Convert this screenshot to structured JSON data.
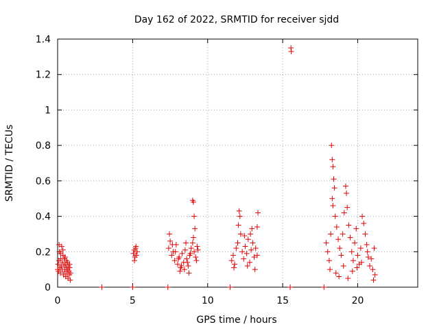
{
  "chart_data": {
    "type": "scatter",
    "title": "Day 162 of 2022, SRMTID for receiver sjdd",
    "xlabel": "GPS time / hours",
    "ylabel": "SRMTID / TECUs",
    "xlim": [
      0,
      24
    ],
    "ylim": [
      0,
      1.4
    ],
    "xticks": [
      0,
      5,
      10,
      15,
      20
    ],
    "yticks": [
      0,
      0.2,
      0.4,
      0.6,
      0.8,
      1.0,
      1.2,
      1.4
    ],
    "xtick_labels": [
      "0",
      "5",
      "10",
      "15",
      "20"
    ],
    "ytick_labels": [
      "0",
      "0.2",
      "0.4",
      "0.6",
      "0.8",
      "1",
      "1.2",
      "1.4"
    ],
    "grid": true,
    "marker": "plus",
    "color": "#e00000",
    "series": [
      {
        "name": "SRMTID",
        "points": [
          [
            0.0,
            0.1
          ],
          [
            0.03,
            0.13
          ],
          [
            0.06,
            0.09
          ],
          [
            0.09,
            0.15
          ],
          [
            0.12,
            0.2
          ],
          [
            0.15,
            0.11
          ],
          [
            0.18,
            0.08
          ],
          [
            0.21,
            0.16
          ],
          [
            0.24,
            0.12
          ],
          [
            0.27,
            0.23
          ],
          [
            0.3,
            0.1
          ],
          [
            0.33,
            0.14
          ],
          [
            0.36,
            0.18
          ],
          [
            0.39,
            0.07
          ],
          [
            0.42,
            0.12
          ],
          [
            0.45,
            0.16
          ],
          [
            0.48,
            0.09
          ],
          [
            0.51,
            0.13
          ],
          [
            0.54,
            0.06
          ],
          [
            0.57,
            0.11
          ],
          [
            0.6,
            0.15
          ],
          [
            0.63,
            0.08
          ],
          [
            0.66,
            0.1
          ],
          [
            0.69,
            0.05
          ],
          [
            0.72,
            0.12
          ],
          [
            0.75,
            0.09
          ],
          [
            0.78,
            0.07
          ],
          [
            0.81,
            0.11
          ],
          [
            0.84,
            0.04
          ],
          [
            0.87,
            0.08
          ],
          [
            0.1,
            0.24
          ],
          [
            0.2,
            0.19
          ],
          [
            0.35,
            0.21
          ],
          [
            0.5,
            0.17
          ],
          [
            0.65,
            0.14
          ],
          [
            0.8,
            0.13
          ],
          [
            2.95,
            0.0
          ],
          [
            5.0,
            0.0
          ],
          [
            7.35,
            0.0
          ],
          [
            11.5,
            0.0
          ],
          [
            15.5,
            0.0
          ],
          [
            17.75,
            0.0
          ],
          [
            5.05,
            0.19
          ],
          [
            5.1,
            0.21
          ],
          [
            5.15,
            0.17
          ],
          [
            5.2,
            0.22
          ],
          [
            5.25,
            0.18
          ],
          [
            5.3,
            0.2
          ],
          [
            5.12,
            0.15
          ],
          [
            5.22,
            0.23
          ],
          [
            7.4,
            0.22
          ],
          [
            7.5,
            0.26
          ],
          [
            7.6,
            0.18
          ],
          [
            7.7,
            0.2
          ],
          [
            7.8,
            0.15
          ],
          [
            7.9,
            0.24
          ],
          [
            8.0,
            0.13
          ],
          [
            8.1,
            0.17
          ],
          [
            8.2,
            0.11
          ],
          [
            8.3,
            0.19
          ],
          [
            8.4,
            0.14
          ],
          [
            8.5,
            0.21
          ],
          [
            8.6,
            0.16
          ],
          [
            8.7,
            0.12
          ],
          [
            8.8,
            0.18
          ],
          [
            8.9,
            0.22
          ],
          [
            9.0,
            0.25
          ],
          [
            9.1,
            0.2
          ],
          [
            9.2,
            0.17
          ],
          [
            9.3,
            0.23
          ],
          [
            7.45,
            0.3
          ],
          [
            7.65,
            0.24
          ],
          [
            7.85,
            0.2
          ],
          [
            8.05,
            0.16
          ],
          [
            8.25,
            0.12
          ],
          [
            8.45,
            0.1
          ],
          [
            8.65,
            0.14
          ],
          [
            8.85,
            0.19
          ],
          [
            9.05,
            0.28
          ],
          [
            9.15,
            0.33
          ],
          [
            9.0,
            0.49
          ],
          [
            9.05,
            0.48
          ],
          [
            9.1,
            0.4
          ],
          [
            9.25,
            0.15
          ],
          [
            9.35,
            0.21
          ],
          [
            8.15,
            0.09
          ],
          [
            8.55,
            0.25
          ],
          [
            8.75,
            0.08
          ],
          [
            11.6,
            0.15
          ],
          [
            11.7,
            0.18
          ],
          [
            11.8,
            0.13
          ],
          [
            11.9,
            0.22
          ],
          [
            12.0,
            0.25
          ],
          [
            12.05,
            0.35
          ],
          [
            12.1,
            0.43
          ],
          [
            12.15,
            0.4
          ],
          [
            12.2,
            0.3
          ],
          [
            12.3,
            0.2
          ],
          [
            12.4,
            0.16
          ],
          [
            12.5,
            0.23
          ],
          [
            12.6,
            0.19
          ],
          [
            12.7,
            0.27
          ],
          [
            12.8,
            0.14
          ],
          [
            12.9,
            0.21
          ],
          [
            13.0,
            0.25
          ],
          [
            13.1,
            0.17
          ],
          [
            13.2,
            0.22
          ],
          [
            13.3,
            0.18
          ],
          [
            13.35,
            0.42
          ],
          [
            13.3,
            0.34
          ],
          [
            12.85,
            0.3
          ],
          [
            12.65,
            0.12
          ],
          [
            13.15,
            0.1
          ],
          [
            11.75,
            0.11
          ],
          [
            12.45,
            0.29
          ],
          [
            12.95,
            0.33
          ],
          [
            15.55,
            1.35
          ],
          [
            15.57,
            1.33
          ],
          [
            17.9,
            0.25
          ],
          [
            18.0,
            0.2
          ],
          [
            18.1,
            0.15
          ],
          [
            18.2,
            0.3
          ],
          [
            18.25,
            0.8
          ],
          [
            18.3,
            0.72
          ],
          [
            18.35,
            0.68
          ],
          [
            18.4,
            0.61
          ],
          [
            18.45,
            0.56
          ],
          [
            18.3,
            0.5
          ],
          [
            18.35,
            0.46
          ],
          [
            18.5,
            0.4
          ],
          [
            18.6,
            0.34
          ],
          [
            18.7,
            0.27
          ],
          [
            18.8,
            0.22
          ],
          [
            18.9,
            0.18
          ],
          [
            19.0,
            0.3
          ],
          [
            19.1,
            0.42
          ],
          [
            19.2,
            0.57
          ],
          [
            19.25,
            0.53
          ],
          [
            19.3,
            0.45
          ],
          [
            19.4,
            0.35
          ],
          [
            19.5,
            0.28
          ],
          [
            19.6,
            0.2
          ],
          [
            19.7,
            0.15
          ],
          [
            19.8,
            0.25
          ],
          [
            19.9,
            0.33
          ],
          [
            20.0,
            0.18
          ],
          [
            20.1,
            0.13
          ],
          [
            20.2,
            0.22
          ],
          [
            20.3,
            0.4
          ],
          [
            20.4,
            0.36
          ],
          [
            20.5,
            0.3
          ],
          [
            20.6,
            0.24
          ],
          [
            20.7,
            0.17
          ],
          [
            20.8,
            0.12
          ],
          [
            20.9,
            0.16
          ],
          [
            21.0,
            0.1
          ],
          [
            21.1,
            0.22
          ],
          [
            21.15,
            0.07
          ],
          [
            18.15,
            0.1
          ],
          [
            18.55,
            0.08
          ],
          [
            18.75,
            0.06
          ],
          [
            19.05,
            0.12
          ],
          [
            19.35,
            0.05
          ],
          [
            19.65,
            0.09
          ],
          [
            19.95,
            0.11
          ],
          [
            20.25,
            0.14
          ],
          [
            20.65,
            0.2
          ],
          [
            21.05,
            0.04
          ]
        ]
      }
    ]
  }
}
